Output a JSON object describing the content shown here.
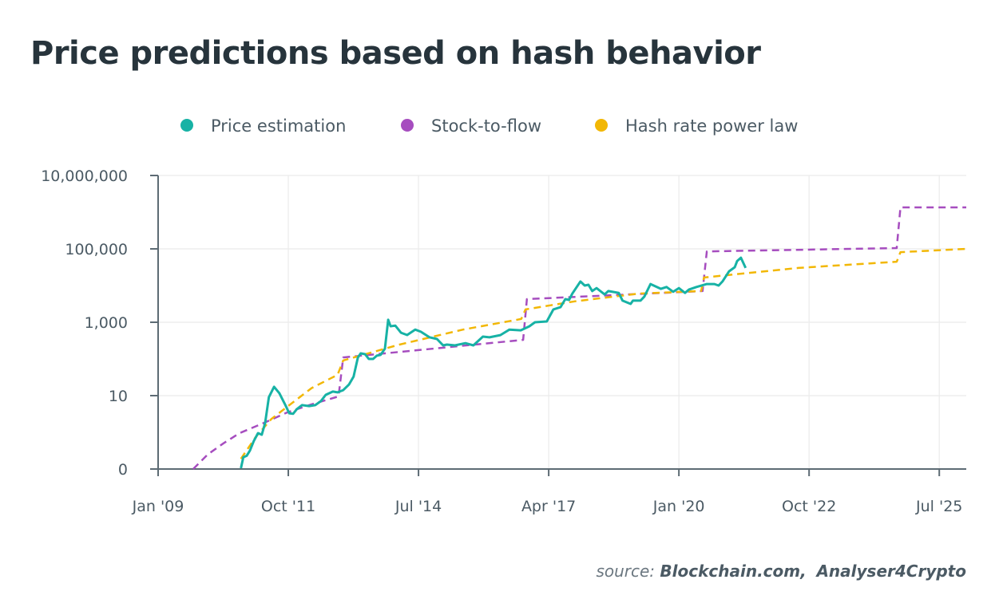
{
  "title": "Price predictions based on hash behavior",
  "source": {
    "prefix": "source:",
    "names": [
      "Blockchain.com,",
      "Analyser4Crypto"
    ]
  },
  "chart_data": {
    "type": "line",
    "title": "Price predictions based on hash behavior",
    "xlabel": "",
    "ylabel": "",
    "yscale": "log",
    "ylim": [
      0.1,
      10000000
    ],
    "xlim": [
      2009.0,
      2026.07
    ],
    "grid": true,
    "legend_position": "top-center",
    "y_ticks": [
      {
        "value": 0.1,
        "label": "0"
      },
      {
        "value": 10,
        "label": "10"
      },
      {
        "value": 1000,
        "label": "1,000"
      },
      {
        "value": 100000,
        "label": "100,000"
      },
      {
        "value": 10000000,
        "label": "10,000,000"
      }
    ],
    "x_ticks": [
      {
        "value": 2009.0,
        "label": "Jan '09"
      },
      {
        "value": 2011.75,
        "label": "Oct '11"
      },
      {
        "value": 2014.5,
        "label": "Jul '14"
      },
      {
        "value": 2017.25,
        "label": "Apr '17"
      },
      {
        "value": 2020.0,
        "label": "Jan '20"
      },
      {
        "value": 2022.75,
        "label": "Oct '22"
      },
      {
        "value": 2025.5,
        "label": "Jul '25"
      }
    ],
    "series": [
      {
        "name": "Price estimation",
        "color": "#17b2a5",
        "dashed": false,
        "points": [
          [
            2010.75,
            0.105
          ],
          [
            2010.8,
            0.21
          ],
          [
            2010.87,
            0.23
          ],
          [
            2010.94,
            0.32
          ],
          [
            2011.02,
            0.58
          ],
          [
            2011.11,
            0.95
          ],
          [
            2011.19,
            0.86
          ],
          [
            2011.26,
            1.8
          ],
          [
            2011.34,
            9.1
          ],
          [
            2011.45,
            17.4
          ],
          [
            2011.56,
            11.7
          ],
          [
            2011.68,
            5.8
          ],
          [
            2011.77,
            3.3
          ],
          [
            2011.85,
            3.2
          ],
          [
            2011.93,
            4.3
          ],
          [
            2012.04,
            5.5
          ],
          [
            2012.19,
            5.2
          ],
          [
            2012.32,
            5.5
          ],
          [
            2012.44,
            7.1
          ],
          [
            2012.54,
            10.5
          ],
          [
            2012.69,
            12.9
          ],
          [
            2012.79,
            12.3
          ],
          [
            2012.91,
            14.1
          ],
          [
            2013.03,
            20
          ],
          [
            2013.13,
            33
          ],
          [
            2013.22,
            110
          ],
          [
            2013.28,
            142
          ],
          [
            2013.37,
            135
          ],
          [
            2013.45,
            100
          ],
          [
            2013.54,
            100
          ],
          [
            2013.62,
            123
          ],
          [
            2013.7,
            129
          ],
          [
            2013.79,
            190
          ],
          [
            2013.86,
            1170
          ],
          [
            2013.91,
            780
          ],
          [
            2014.01,
            810
          ],
          [
            2014.13,
            520
          ],
          [
            2014.26,
            450
          ],
          [
            2014.43,
            630
          ],
          [
            2014.55,
            550
          ],
          [
            2014.73,
            390
          ],
          [
            2014.89,
            350
          ],
          [
            2015.02,
            234
          ],
          [
            2015.1,
            246
          ],
          [
            2015.27,
            234
          ],
          [
            2015.49,
            270
          ],
          [
            2015.66,
            234
          ],
          [
            2015.86,
            407
          ],
          [
            2016.0,
            389
          ],
          [
            2016.23,
            447
          ],
          [
            2016.42,
            631
          ],
          [
            2016.66,
            603
          ],
          [
            2016.84,
            776
          ],
          [
            2016.96,
            1000
          ],
          [
            2017.21,
            1050
          ],
          [
            2017.35,
            2240
          ],
          [
            2017.5,
            2570
          ],
          [
            2017.6,
            4270
          ],
          [
            2017.68,
            4070
          ],
          [
            2017.75,
            6030
          ],
          [
            2017.92,
            12900
          ],
          [
            2018.01,
            10000
          ],
          [
            2018.09,
            10500
          ],
          [
            2018.17,
            7080
          ],
          [
            2018.26,
            8510
          ],
          [
            2018.43,
            5750
          ],
          [
            2018.51,
            7080
          ],
          [
            2018.73,
            6310
          ],
          [
            2018.81,
            3890
          ],
          [
            2018.98,
            3160
          ],
          [
            2019.03,
            3890
          ],
          [
            2019.19,
            3890
          ],
          [
            2019.27,
            5010
          ],
          [
            2019.4,
            11000
          ],
          [
            2019.62,
            8130
          ],
          [
            2019.74,
            9120
          ],
          [
            2019.88,
            6760
          ],
          [
            2020.0,
            8510
          ],
          [
            2020.13,
            6310
          ],
          [
            2020.21,
            7760
          ],
          [
            2020.37,
            9120
          ],
          [
            2020.59,
            11000
          ],
          [
            2020.75,
            11000
          ],
          [
            2020.84,
            10000
          ],
          [
            2020.92,
            12900
          ],
          [
            2021.06,
            24500
          ],
          [
            2021.18,
            31600
          ],
          [
            2021.23,
            46800
          ],
          [
            2021.31,
            57500
          ],
          [
            2021.41,
            30200
          ]
        ]
      },
      {
        "name": "Stock-to-flow",
        "color": "#a64dbf",
        "dashed": true,
        "points": [
          [
            2009.74,
            0.1
          ],
          [
            2010.05,
            0.25
          ],
          [
            2010.38,
            0.5
          ],
          [
            2010.72,
            0.95
          ],
          [
            2011.23,
            1.8
          ],
          [
            2011.73,
            3.5
          ],
          [
            2012.24,
            5.8
          ],
          [
            2012.81,
            9.5
          ],
          [
            2012.91,
            110
          ],
          [
            2016.71,
            330
          ],
          [
            2016.79,
            4270
          ],
          [
            2020.5,
            7080
          ],
          [
            2020.59,
            85100
          ],
          [
            2024.6,
            105000
          ],
          [
            2024.68,
            1350000
          ],
          [
            2026.07,
            1350000
          ]
        ]
      },
      {
        "name": "Hash rate power law",
        "color": "#f2b705",
        "dashed": true,
        "points": [
          [
            2010.75,
            0.19
          ],
          [
            2011.06,
            0.74
          ],
          [
            2011.39,
            2.3
          ],
          [
            2011.73,
            5
          ],
          [
            2012.24,
            16
          ],
          [
            2012.79,
            37
          ],
          [
            2012.91,
            91
          ],
          [
            2014.09,
            245
          ],
          [
            2015.44,
            631
          ],
          [
            2016.67,
            1230
          ],
          [
            2016.76,
            2240
          ],
          [
            2017.8,
            3720
          ],
          [
            2019.15,
            6030
          ],
          [
            2020.47,
            7080
          ],
          [
            2020.53,
            16600
          ],
          [
            2022.52,
            30200
          ],
          [
            2024.6,
            44700
          ],
          [
            2024.68,
            81300
          ],
          [
            2026.07,
            100000
          ]
        ]
      }
    ]
  }
}
